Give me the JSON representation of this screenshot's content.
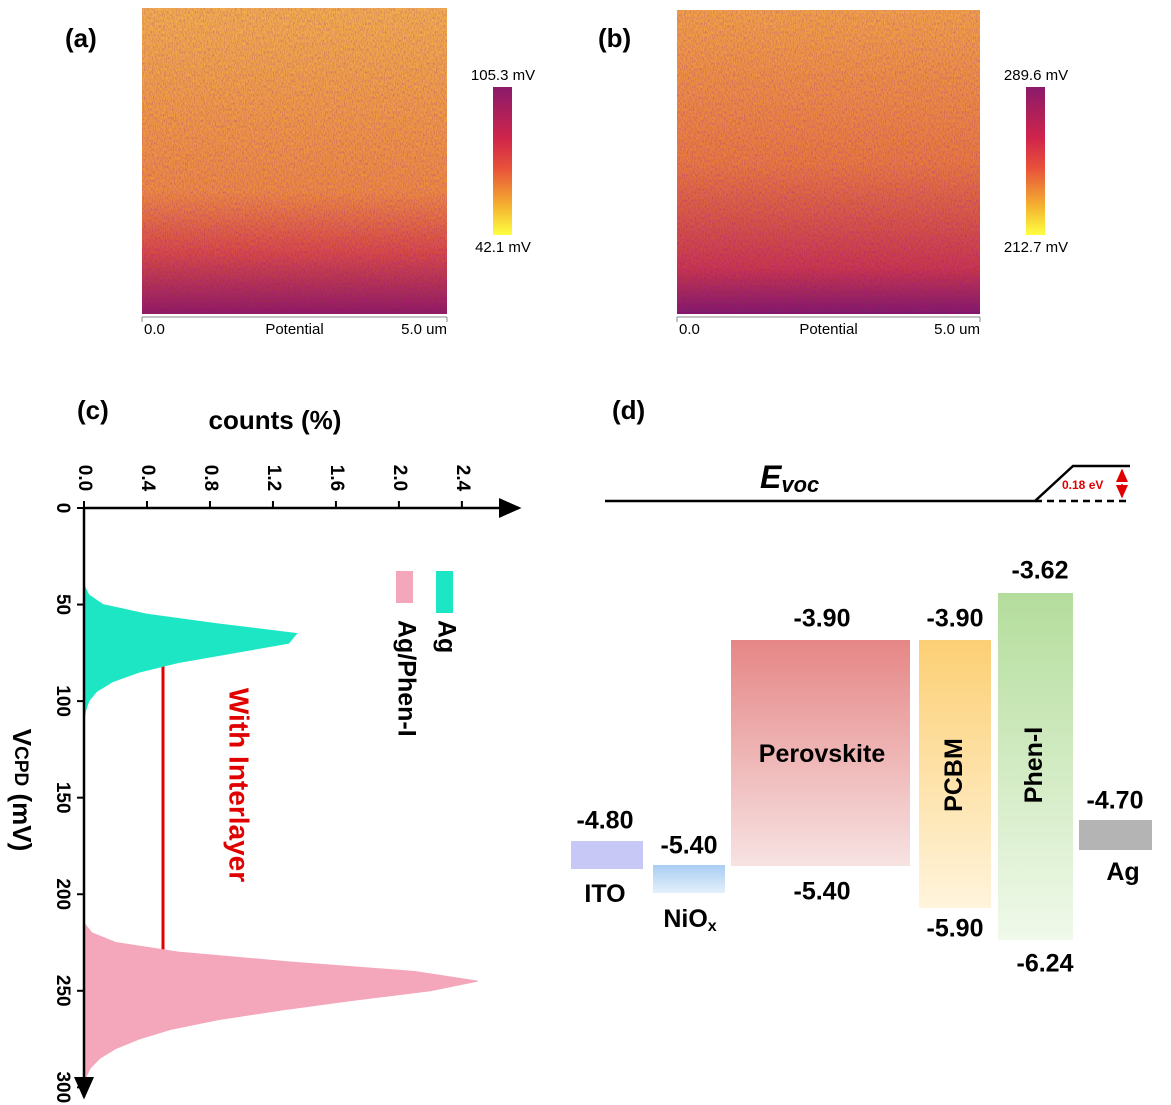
{
  "panels": [
    {
      "label": "(a)",
      "scale_max": "105.3 mV",
      "scale_min": "42.1 mV",
      "axis_start": "0.0",
      "axis_title": "Potential",
      "axis_end": "5.0 um"
    },
    {
      "label": "(b)",
      "scale_max": "289.6 mV",
      "scale_min": "212.7 mV",
      "axis_start": "0.0",
      "axis_title": "Potential",
      "axis_end": "5.0 um"
    }
  ],
  "chart_data": {
    "type": "area",
    "panel_label": "(c)",
    "x_label": "counts (%)",
    "y_label": "V",
    "y_label_sub": "CPD",
    "y_label_unit": " (mV)",
    "annotation": "With Interlayer",
    "xlim": [
      0,
      2.75
    ],
    "xticks": [
      {
        "value": 0,
        "label": "0.0"
      },
      0.4,
      {
        "value": 0.8,
        "label": "0.8"
      },
      1.2,
      1.6,
      {
        "value": 2.0,
        "label": "2.0"
      },
      2.4
    ],
    "ylim": [
      0,
      305
    ],
    "y_inverted": true,
    "yticks": [
      0,
      50,
      100,
      150,
      200,
      250,
      300
    ],
    "series": [
      {
        "name": "Ag",
        "color": "#1de6c4",
        "y": [
          40,
          45,
          50,
          55,
          60,
          65,
          70,
          75,
          80,
          85,
          90,
          95,
          100,
          105,
          110
        ],
        "values": [
          0,
          0.03,
          0.12,
          0.4,
          0.85,
          1.35,
          1.3,
          0.95,
          0.6,
          0.35,
          0.18,
          0.08,
          0.03,
          0.01,
          0
        ]
      },
      {
        "name": "Ag/Phen-I",
        "color": "#f4a6ba",
        "y": [
          215,
          220,
          225,
          230,
          235,
          240,
          245,
          250,
          255,
          260,
          265,
          270,
          275,
          280,
          285,
          290,
          295,
          300
        ],
        "values": [
          0,
          0.05,
          0.2,
          0.6,
          1.3,
          2.1,
          2.5,
          2.2,
          1.7,
          1.25,
          0.85,
          0.55,
          0.35,
          0.2,
          0.1,
          0.04,
          0.01,
          0
        ]
      }
    ]
  },
  "diagram": {
    "panel_label": "(d)",
    "level_label": "E",
    "level_label_sub": "voc",
    "offset_label": "0.18 eV",
    "layers": [
      {
        "name": "ITO",
        "top": "-4.80"
      },
      {
        "name": "NiO",
        "name_sub": "x",
        "top": "-5.40"
      },
      {
        "name": "Perovskite",
        "top": "-3.90",
        "bottom": "-5.40"
      },
      {
        "name": "PCBM",
        "top": "-3.90",
        "bottom": "-5.90"
      },
      {
        "name": "Phen-I",
        "top": "-3.62",
        "bottom": "-6.24"
      },
      {
        "name": "Ag",
        "top": "-4.70"
      }
    ]
  }
}
